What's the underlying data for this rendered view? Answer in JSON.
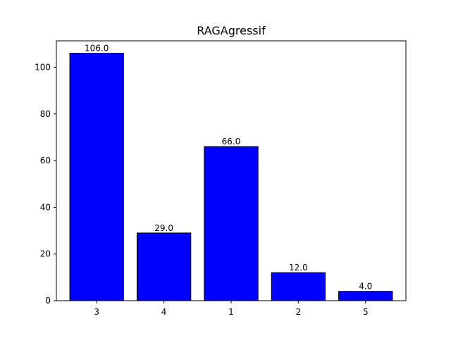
{
  "chart_data": {
    "type": "bar",
    "title": "RAGAgressif",
    "xlabel": "",
    "ylabel": "",
    "categories": [
      "3",
      "4",
      "1",
      "2",
      "5"
    ],
    "values": [
      106.0,
      29.0,
      66.0,
      12.0,
      4.0
    ],
    "data_labels": [
      "106.0",
      "29.0",
      "66.0",
      "12.0",
      "4.0"
    ],
    "ylim": [
      0,
      111.3
    ],
    "yticks": [
      0,
      20,
      40,
      60,
      80,
      100
    ],
    "bar_color": "#0000ff",
    "edge_color": "#000000",
    "grid": false,
    "legend": "none"
  }
}
